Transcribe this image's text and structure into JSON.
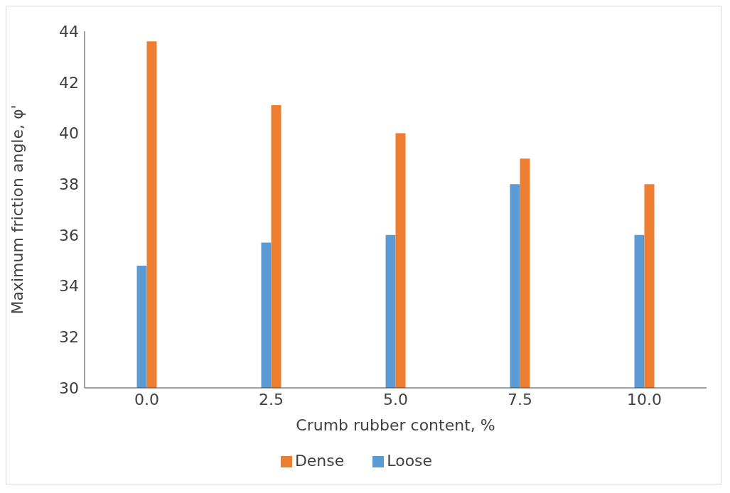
{
  "chart_data": {
    "type": "bar",
    "xlabel": "Crumb rubber content, %",
    "ylabel": "Maximum friction angle, φ'",
    "categories": [
      "0.0",
      "2.5",
      "5.0",
      "7.5",
      "10.0"
    ],
    "series": [
      {
        "name": "Loose",
        "color": "#5b9bd5",
        "values": [
          34.8,
          35.7,
          36.0,
          38.0,
          36.0
        ]
      },
      {
        "name": "Dense",
        "color": "#ed7d31",
        "values": [
          43.6,
          41.1,
          40.0,
          39.0,
          38.0
        ]
      }
    ],
    "ylim": [
      30,
      44
    ],
    "yticks": [
      30,
      32,
      34,
      36,
      38,
      40,
      42,
      44
    ],
    "grid": false,
    "legend": "bottom"
  }
}
